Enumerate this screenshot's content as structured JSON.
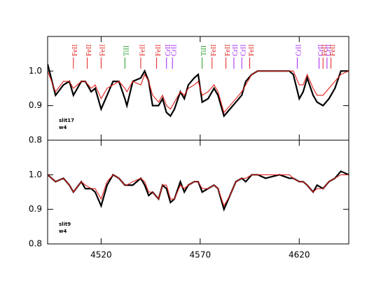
{
  "chart_data": [
    {
      "type": "line",
      "annotation": [
        "slit17",
        "w4"
      ],
      "xlim": [
        4493,
        4645
      ],
      "ylim": [
        0.8,
        1.1
      ],
      "xticks": [
        4520,
        4570,
        4620
      ],
      "show_xtick_labels": false,
      "yticks": [
        0.8,
        0.9,
        {
          "value": 1,
          "label": "1.0"
        }
      ],
      "x": [
        4493,
        4497,
        4501,
        4504,
        4506,
        4510,
        4512,
        4515,
        4517,
        4520,
        4523,
        4526,
        4529,
        4532,
        4533,
        4536,
        4540,
        4542,
        4544,
        4546,
        4549,
        4551,
        4553,
        4555,
        4557,
        4560,
        4562,
        4564,
        4567,
        4569,
        4571,
        4574,
        4577,
        4579,
        4582,
        4585,
        4588,
        4591,
        4593,
        4596,
        4599,
        4603,
        4610,
        4615,
        4617,
        4620,
        4622,
        4624,
        4627,
        4629,
        4632,
        4635,
        4638,
        4641,
        4645
      ],
      "series": [
        {
          "color": "#000000",
          "values": [
            1.02,
            0.93,
            0.96,
            0.97,
            0.93,
            0.97,
            0.97,
            0.94,
            0.95,
            0.89,
            0.93,
            0.97,
            0.97,
            0.92,
            0.9,
            0.97,
            0.98,
            1.0,
            0.97,
            0.9,
            0.9,
            0.92,
            0.88,
            0.87,
            0.89,
            0.94,
            0.92,
            0.96,
            0.98,
            0.99,
            0.91,
            0.92,
            0.95,
            0.93,
            0.87,
            0.89,
            0.91,
            0.93,
            0.97,
            0.99,
            1.0,
            1.0,
            1.0,
            1.0,
            0.99,
            0.92,
            0.94,
            0.98,
            0.93,
            0.91,
            0.9,
            0.92,
            0.95,
            1.0,
            1.0
          ]
        },
        {
          "color": "#e0201b",
          "values": [
            1.0,
            0.94,
            0.97,
            0.97,
            0.95,
            0.97,
            0.97,
            0.95,
            0.96,
            0.92,
            0.95,
            0.96,
            0.97,
            0.95,
            0.94,
            0.97,
            0.96,
            0.99,
            0.97,
            0.93,
            0.91,
            0.93,
            0.9,
            0.89,
            0.91,
            0.94,
            0.93,
            0.95,
            0.96,
            0.97,
            0.93,
            0.94,
            0.96,
            0.94,
            0.88,
            0.9,
            0.92,
            0.94,
            0.96,
            0.99,
            1.0,
            1.0,
            1.0,
            1.0,
            1.0,
            0.96,
            0.96,
            0.99,
            0.95,
            0.93,
            0.93,
            0.95,
            0.97,
            0.99,
            1.0
          ]
        }
      ],
      "line_ids": [
        {
          "label": "FeII",
          "color": "#e0201b",
          "x": 4506
        },
        {
          "label": "FeII",
          "color": "#e0201b",
          "x": 4513
        },
        {
          "label": "FeII",
          "color": "#e0201b",
          "x": 4520
        },
        {
          "label": "TiII",
          "color": "#1a9a1a",
          "x": 4532
        },
        {
          "label": "FeII",
          "color": "#e0201b",
          "x": 4540
        },
        {
          "label": "FeII",
          "color": "#e0201b",
          "x": 4548
        },
        {
          "label": "CrII",
          "color": "#a020f0",
          "x": 4553
        },
        {
          "label": "CrII",
          "color": "#a020f0",
          "x": 4556
        },
        {
          "label": "TiII",
          "color": "#1a9a1a",
          "x": 4571
        },
        {
          "label": "FeII",
          "color": "#e0201b",
          "x": 4576
        },
        {
          "label": "FeII",
          "color": "#e0201b",
          "x": 4583
        },
        {
          "label": "CrII",
          "color": "#a020f0",
          "x": 4587
        },
        {
          "label": "CrII",
          "color": "#a020f0",
          "x": 4591
        },
        {
          "label": "FeII",
          "color": "#e0201b",
          "x": 4595
        },
        {
          "label": "CrII",
          "color": "#a020f0",
          "x": 4619
        },
        {
          "label": "CrII",
          "color": "#a020f0",
          "x": 4630
        },
        {
          "label": "FeII",
          "color": "#e0201b",
          "x": 4632
        },
        {
          "label": "CrII",
          "color": "#a020f0",
          "x": 4634
        },
        {
          "label": "FeII",
          "color": "#e0201b",
          "x": 4636
        }
      ]
    },
    {
      "type": "line",
      "annotation": [
        "slit9",
        "w4"
      ],
      "xlim": [
        4493,
        4645
      ],
      "ylim": [
        0.8,
        1.1
      ],
      "xticks": [
        4520,
        4570,
        4620
      ],
      "show_xtick_labels": true,
      "yticks": [
        0.8,
        0.9,
        {
          "value": 1,
          "label": "1.0"
        }
      ],
      "x": [
        4493,
        4497,
        4501,
        4504,
        4506,
        4510,
        4512,
        4515,
        4517,
        4520,
        4523,
        4526,
        4529,
        4532,
        4533,
        4536,
        4540,
        4542,
        4544,
        4546,
        4549,
        4551,
        4553,
        4555,
        4557,
        4560,
        4562,
        4564,
        4567,
        4569,
        4571,
        4574,
        4577,
        4579,
        4582,
        4585,
        4588,
        4591,
        4593,
        4596,
        4599,
        4603,
        4610,
        4615,
        4617,
        4620,
        4622,
        4624,
        4627,
        4629,
        4632,
        4635,
        4638,
        4641,
        4645
      ],
      "series": [
        {
          "color": "#000000",
          "values": [
            1.0,
            0.98,
            0.99,
            0.97,
            0.95,
            0.98,
            0.96,
            0.96,
            0.95,
            0.91,
            0.97,
            1.0,
            0.99,
            0.97,
            0.97,
            0.97,
            0.99,
            0.97,
            0.94,
            0.95,
            0.93,
            0.97,
            0.96,
            0.92,
            0.93,
            0.98,
            0.95,
            0.97,
            0.98,
            0.98,
            0.95,
            0.96,
            0.97,
            0.96,
            0.9,
            0.94,
            0.98,
            0.99,
            0.98,
            1.0,
            1.0,
            0.99,
            1.0,
            0.99,
            0.99,
            0.98,
            0.98,
            0.97,
            0.95,
            0.97,
            0.96,
            0.98,
            0.99,
            1.01,
            1.0
          ]
        },
        {
          "color": "#e0201b",
          "values": [
            1.0,
            0.98,
            0.99,
            0.97,
            0.95,
            0.98,
            0.97,
            0.96,
            0.96,
            0.93,
            0.98,
            1.0,
            0.99,
            0.97,
            0.97,
            0.98,
            0.99,
            0.98,
            0.95,
            0.95,
            0.93,
            0.97,
            0.97,
            0.93,
            0.93,
            0.97,
            0.96,
            0.97,
            0.98,
            0.98,
            0.96,
            0.96,
            0.97,
            0.96,
            0.91,
            0.94,
            0.98,
            0.99,
            0.99,
            1.0,
            1.0,
            1.0,
            1.0,
            1.0,
            0.99,
            0.98,
            0.98,
            0.97,
            0.95,
            0.96,
            0.96,
            0.98,
            0.99,
            1.0,
            1.0
          ]
        }
      ]
    }
  ]
}
